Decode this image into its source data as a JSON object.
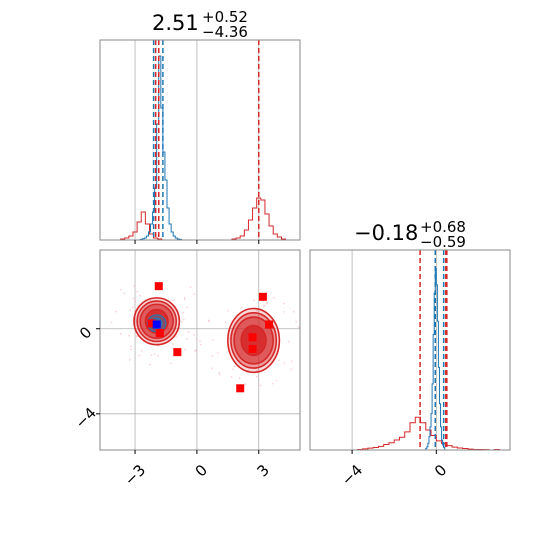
{
  "chart_data": {
    "type": "corner",
    "colors": {
      "red": "#d62728",
      "blue": "#1f77b4",
      "grid": "#b0b0b0",
      "marker_red": "#ff0000",
      "marker_blue": "#0000ff"
    },
    "param1": {
      "title": {
        "median": "2.51",
        "plus": "+0.52",
        "minus": "−4.36"
      },
      "xlim": [
        -4.7,
        5.0
      ],
      "ticks": [
        {
          "v": -3,
          "label": "−3"
        },
        {
          "v": 0,
          "label": "0"
        },
        {
          "v": 3,
          "label": "3"
        }
      ],
      "quantile_lines_red": [
        -2.0,
        -1.85,
        3.0
      ],
      "quantile_lines_blue": [
        -2.1,
        -1.65
      ],
      "hist_red": {
        "bin_start": -4.7,
        "bin_width": 0.2,
        "counts": [
          0,
          0,
          0,
          0,
          0,
          0.5,
          1,
          2,
          4,
          9,
          14,
          8,
          3,
          1,
          0.5,
          0,
          0,
          0,
          0,
          0,
          0,
          0,
          0,
          0,
          0,
          0,
          0,
          0,
          0,
          0,
          0,
          0,
          0.5,
          1,
          2,
          5,
          10,
          16,
          21,
          20,
          13,
          7,
          3,
          1.5,
          0.5,
          0,
          0,
          0,
          0
        ]
      },
      "hist_blue": {
        "bin_start": -2.75,
        "bin_width": 0.1,
        "counts": [
          0.3,
          0.6,
          1,
          2,
          4,
          8,
          14,
          26,
          58,
          92,
          66,
          44,
          30,
          16,
          8,
          4,
          2,
          1,
          0.5,
          0.3
        ]
      },
      "hist_ymax": 95
    },
    "param2": {
      "title": {
        "median": "−0.18",
        "plus": "+0.68",
        "minus": "−0.59"
      },
      "xlim": [
        -6.0,
        3.5
      ],
      "ylim": [
        -5.7,
        3.7
      ],
      "ticks": [
        {
          "v": -4,
          "label": "−4"
        },
        {
          "v": 0,
          "label": "0"
        }
      ],
      "quantile_lines_red": [
        -0.77,
        0.5,
        0.45
      ],
      "quantile_lines_blue": [
        -0.05,
        0.35
      ],
      "hist_red": {
        "bin_start": -4.0,
        "bin_width": 0.25,
        "counts": [
          0,
          0.3,
          0.6,
          1,
          1.4,
          2,
          3,
          4,
          5.5,
          7,
          10,
          15,
          18,
          15,
          11,
          8,
          5,
          3.5,
          2.4,
          1.6,
          1.1,
          0.8,
          0.5,
          0.3,
          0.3,
          0.2,
          0,
          0.3,
          0
        ]
      },
      "hist_blue": {
        "bin_start": -0.5,
        "bin_width": 0.05,
        "counts": [
          1,
          2,
          4,
          8,
          14,
          22,
          40,
          70,
          95,
          110,
          100,
          78,
          50,
          28,
          14,
          6,
          3,
          1.5
        ]
      },
      "hist_ymax": 115
    },
    "scatter_red_markers": [
      {
        "x": -1.85,
        "y": 2.0
      },
      {
        "x": -2.2,
        "y": 0.25
      },
      {
        "x": -1.8,
        "y": -0.2
      },
      {
        "x": -0.95,
        "y": -1.1
      },
      {
        "x": 3.2,
        "y": 1.5
      },
      {
        "x": 3.5,
        "y": 0.2
      },
      {
        "x": 2.7,
        "y": -0.4
      },
      {
        "x": 2.7,
        "y": -0.95
      },
      {
        "x": 2.1,
        "y": -2.8
      }
    ],
    "scatter_blue_marker": {
      "x": -1.95,
      "y": 0.2
    },
    "contour_red_modes": [
      {
        "cx": -1.95,
        "cy": 0.35,
        "rx": [
          0.55,
          0.8,
          0.95,
          1.1
        ],
        "ry": [
          0.55,
          0.8,
          0.95,
          1.1
        ]
      },
      {
        "cx": 2.75,
        "cy": -0.55,
        "rx": [
          0.6,
          0.95,
          1.1,
          1.25
        ],
        "ry": [
          0.7,
          1.1,
          1.3,
          1.5
        ]
      }
    ],
    "contour_blue": {
      "cx": -1.95,
      "cy": 0.25,
      "rx": [
        0.25,
        0.45
      ],
      "ry": [
        0.25,
        0.4
      ]
    }
  }
}
